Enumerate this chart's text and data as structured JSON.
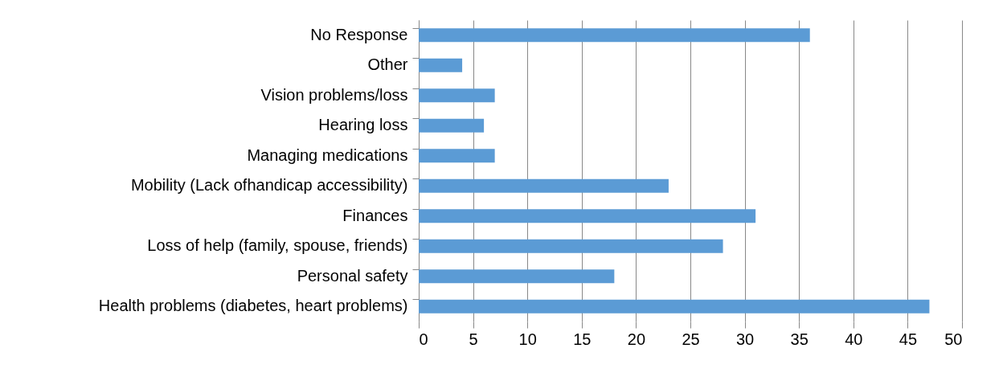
{
  "chart_data": {
    "type": "bar",
    "orientation": "horizontal",
    "categories": [
      "No Response",
      "Other",
      "Vision problems/loss",
      "Hearing loss",
      "Managing medications",
      "Mobility (Lack ofhandicap accessibility)",
      "Finances",
      "Loss of help (family, spouse, friends)",
      "Personal safety",
      "Health problems (diabetes, heart problems)"
    ],
    "values": [
      36,
      4,
      7,
      6,
      7,
      23,
      31,
      28,
      18,
      47
    ],
    "color": "#5b9bd5",
    "xlim": [
      0,
      50
    ],
    "xticks": [
      0,
      5,
      10,
      15,
      20,
      25,
      30,
      35,
      40,
      45,
      50
    ],
    "grid": "x"
  }
}
